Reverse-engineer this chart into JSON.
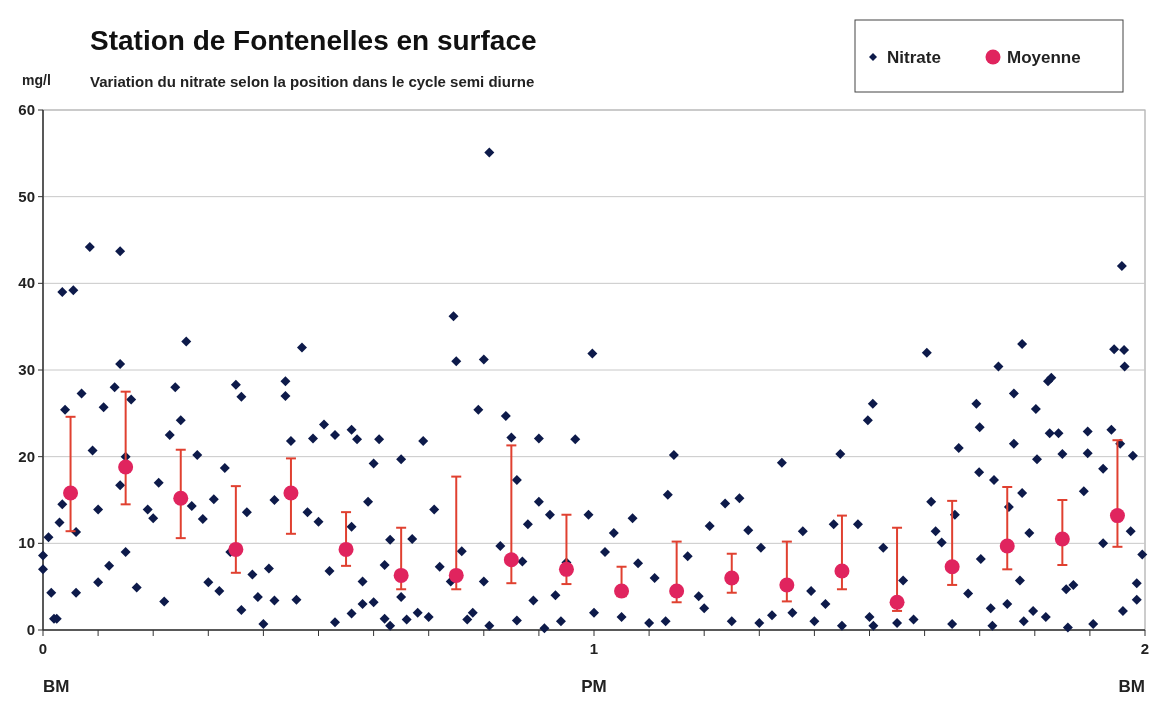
{
  "chart_data": {
    "type": "scatter",
    "title": "Station de Fontenelles en surface",
    "subtitle": "Variation du nitrate selon la position dans le cycle semi diurne",
    "ylabel": "mg/l",
    "annotations": [
      "BM",
      "PM",
      "BM"
    ],
    "xlim": [
      0,
      2
    ],
    "ylim": [
      0,
      60
    ],
    "xticks": [
      0,
      {
        "value": 0.1,
        "label": null
      },
      {
        "value": 0.2,
        "label": null
      },
      {
        "value": 0.3,
        "label": null
      },
      {
        "value": 0.4,
        "label": null
      },
      {
        "value": 0.5,
        "label": null
      },
      {
        "value": 0.6,
        "label": null
      },
      {
        "value": 0.7,
        "label": null
      },
      {
        "value": 0.8,
        "label": null
      },
      {
        "value": 0.9,
        "label": null
      },
      1,
      {
        "value": 1.1,
        "label": null
      },
      {
        "value": 1.2,
        "label": null
      },
      {
        "value": 1.3,
        "label": null
      },
      {
        "value": 1.4,
        "label": null
      },
      {
        "value": 1.5,
        "label": null
      },
      {
        "value": 1.6,
        "label": null
      },
      {
        "value": 1.7,
        "label": null
      },
      {
        "value": 1.8,
        "label": null
      },
      {
        "value": 1.9,
        "label": null
      },
      2
    ],
    "yticks": [
      0,
      10,
      20,
      30,
      40,
      50,
      60
    ],
    "grid": "y",
    "legend": "top right",
    "series": [
      {
        "name": "Nitrate",
        "color": "#0d1a4a",
        "marker": "diamond",
        "x": [
          0,
          0,
          0.01,
          0.015,
          0.02,
          0.025,
          0.03,
          0.035,
          0.04,
          0.035,
          0.055,
          0.06,
          0.06,
          0.07,
          0.085,
          0.09,
          0.1,
          0.1,
          0.11,
          0.12,
          0.13,
          0.14,
          0.14,
          0.14,
          0.15,
          0.15,
          0.16,
          0.17,
          0.19,
          0.2,
          0.21,
          0.22,
          0.23,
          0.24,
          0.25,
          0.26,
          0.27,
          0.28,
          0.29,
          0.3,
          0.31,
          0.32,
          0.33,
          0.34,
          0.35,
          0.36,
          0.36,
          0.37,
          0.38,
          0.39,
          0.4,
          0.41,
          0.42,
          0.42,
          0.44,
          0.44,
          0.45,
          0.46,
          0.47,
          0.48,
          0.49,
          0.5,
          0.51,
          0.52,
          0.53,
          0.53,
          0.56,
          0.56,
          0.56,
          0.57,
          0.58,
          0.58,
          0.59,
          0.6,
          0.6,
          0.61,
          0.62,
          0.62,
          0.63,
          0.63,
          0.65,
          0.65,
          0.66,
          0.67,
          0.68,
          0.69,
          0.7,
          0.71,
          0.72,
          0.74,
          0.745,
          0.75,
          0.76,
          0.77,
          0.78,
          0.79,
          0.8,
          0.8,
          0.81,
          0.81,
          0.83,
          0.84,
          0.85,
          0.86,
          0.86,
          0.87,
          0.88,
          0.89,
          0.9,
          0.9,
          0.91,
          0.92,
          0.93,
          0.94,
          0.95,
          0.966,
          0.997,
          0.99,
          1.0,
          1.02,
          1.036,
          1.05,
          1.07,
          1.08,
          1.1,
          1.11,
          1.13,
          1.134,
          1.145,
          1.17,
          1.19,
          1.2,
          1.21,
          1.238,
          1.25,
          1.264,
          1.28,
          1.3,
          1.303,
          1.323,
          1.341,
          1.36,
          1.379,
          1.394,
          1.4,
          1.42,
          1.435,
          1.447,
          1.45,
          1.479,
          1.497,
          1.5,
          1.506,
          1.507,
          1.525,
          1.55,
          1.561,
          1.58,
          1.604,
          1.612,
          1.62,
          1.631,
          1.65,
          1.655,
          1.662,
          1.679,
          1.694,
          1.7,
          1.699,
          1.702,
          1.72,
          1.723,
          1.726,
          1.734,
          1.75,
          1.753,
          1.762,
          1.762,
          1.773,
          1.777,
          1.777,
          1.78,
          1.79,
          1.797,
          1.802,
          1.804,
          1.82,
          1.824,
          1.827,
          1.83,
          1.843,
          1.85,
          1.857,
          1.86,
          1.87,
          1.889,
          1.896,
          1.896,
          1.906,
          1.924,
          1.924,
          1.939,
          1.944,
          1.955,
          1.958,
          1.96,
          1.962,
          1.963,
          1.974,
          1.978,
          1.985,
          1.985,
          1.995
        ],
        "values": [
          8.6,
          7.0,
          10.7,
          4.3,
          1.3,
          1.3,
          12.4,
          14.5,
          25.4,
          39.0,
          39.2,
          11.3,
          4.3,
          27.3,
          44.2,
          20.7,
          13.9,
          5.5,
          25.7,
          7.4,
          28.0,
          43.7,
          30.7,
          16.7,
          9.0,
          20.0,
          26.6,
          4.9,
          13.9,
          12.9,
          17.0,
          3.3,
          22.5,
          28.0,
          24.2,
          33.3,
          14.3,
          20.2,
          12.8,
          5.5,
          15.1,
          4.5,
          18.7,
          9.0,
          28.3,
          26.9,
          2.3,
          13.6,
          6.4,
          3.8,
          0.7,
          7.1,
          3.4,
          15.0,
          27.0,
          28.7,
          21.8,
          3.5,
          32.6,
          13.6,
          22.1,
          12.5,
          23.7,
          6.8,
          0.9,
          22.5,
          23.1,
          11.9,
          1.9,
          22.0,
          5.6,
          3.0,
          14.8,
          3.2,
          19.2,
          22.0,
          7.5,
          1.3,
          0.5,
          10.4,
          19.7,
          3.8,
          1.2,
          10.5,
          2.0,
          21.8,
          1.5,
          13.9,
          7.3,
          5.6,
          36.2,
          31.0,
          9.1,
          1.2,
          2.0,
          25.4,
          31.2,
          5.6,
          55.1,
          0.5,
          9.7,
          24.7,
          22.2,
          17.3,
          1.1,
          7.9,
          12.2,
          3.4,
          14.8,
          22.1,
          0.2,
          13.3,
          4.0,
          1.0,
          7.8,
          22.0,
          31.9,
          13.3,
          2.0,
          9.0,
          11.2,
          1.5,
          12.9,
          7.7,
          0.8,
          6.0,
          1.0,
          15.6,
          20.2,
          8.5,
          3.9,
          2.5,
          12.0,
          14.6,
          1.0,
          15.2,
          11.5,
          0.8,
          9.5,
          1.7,
          19.3,
          2.0,
          11.4,
          4.5,
          1.0,
          3.0,
          12.2,
          20.3,
          0.5,
          12.2,
          24.2,
          1.5,
          26.1,
          0.5,
          9.5,
          0.8,
          5.7,
          1.2,
          32.0,
          14.8,
          11.4,
          10.1,
          0.7,
          13.3,
          21.0,
          4.2,
          26.1,
          23.4,
          18.2,
          8.2,
          2.5,
          0.5,
          17.3,
          30.4,
          3.0,
          14.2,
          27.3,
          21.5,
          5.7,
          33.0,
          15.8,
          1.0,
          11.2,
          2.2,
          25.5,
          19.7,
          1.5,
          28.7,
          22.7,
          29.1,
          22.7,
          20.3,
          4.7,
          0.3,
          5.2,
          16.0,
          22.9,
          20.4,
          0.7,
          18.6,
          10.0,
          23.1,
          32.4,
          21.5,
          42.0,
          2.2,
          32.3,
          30.4,
          11.4,
          20.1,
          5.4,
          3.5,
          8.7
        ]
      },
      {
        "name": "Moyenne",
        "color": "#e0245e",
        "marker": "circle",
        "x": [
          0.05,
          0.15,
          0.25,
          0.35,
          0.45,
          0.55,
          0.65,
          0.75,
          0.85,
          0.95,
          1.05,
          1.15,
          1.25,
          1.35,
          1.45,
          1.55,
          1.65,
          1.75,
          1.85,
          1.95
        ],
        "values": [
          15.8,
          18.8,
          15.2,
          9.3,
          15.8,
          9.3,
          6.3,
          6.3,
          8.1,
          7.0,
          4.5,
          4.5,
          6.0,
          5.2,
          6.8,
          3.2,
          7.3,
          9.7,
          10.5,
          13.2
        ],
        "errors": [
          [
            11.4,
            24.6
          ],
          [
            14.5,
            27.5
          ],
          [
            10.6,
            20.8
          ],
          [
            6.6,
            16.6
          ],
          [
            11.1,
            19.8
          ],
          [
            7.4,
            13.6
          ],
          [
            4.7,
            11.8
          ],
          [
            4.7,
            17.7
          ],
          [
            5.4,
            21.3
          ],
          [
            5.3,
            13.3
          ],
          [
            3.9,
            7.3
          ],
          [
            3.2,
            10.2
          ],
          [
            4.3,
            8.8
          ],
          [
            3.3,
            10.2
          ],
          [
            4.7,
            13.2
          ],
          [
            2.2,
            11.8
          ],
          [
            5.2,
            14.9
          ],
          [
            7.0,
            16.5
          ],
          [
            7.5,
            15.0
          ],
          [
            9.6,
            21.9
          ]
        ]
      }
    ]
  }
}
